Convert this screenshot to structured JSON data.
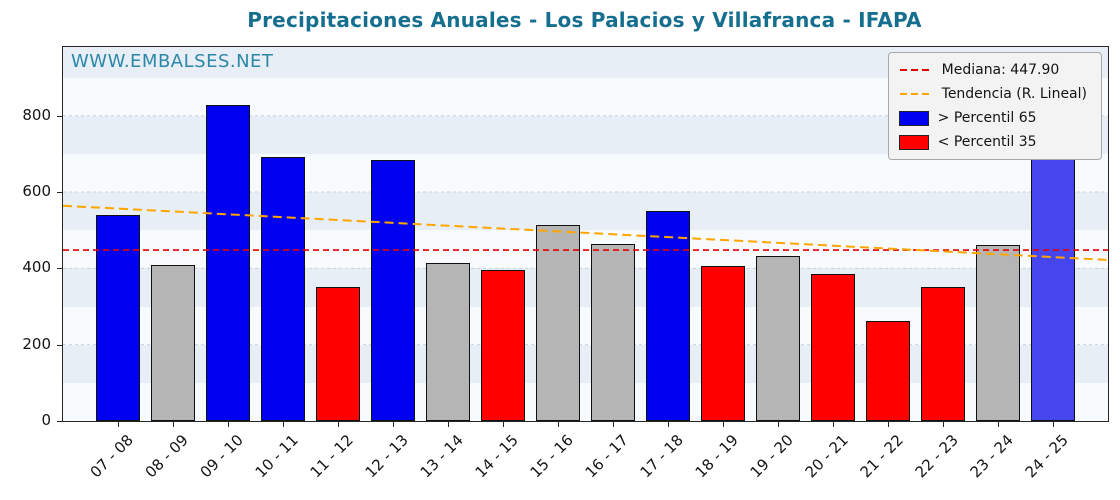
{
  "title": "Precipitaciones Anuales - Los Palacios y Villafranca - IFAPA",
  "watermark": "WWW.EMBALSES.NET",
  "colors": {
    "title": "#176f8f",
    "watermark": "#2d87a8",
    "band_light": "#e7eef6",
    "band_lighter": "#f8fbfd",
    "gridline": "#c4d2e0",
    "axis": "#262626",
    "bar_blue": "#0000f0",
    "bar_red": "#ff0000",
    "bar_gray": "#b5b5b5",
    "bar_blue_current": "#4646ee",
    "median_line": "#e60000",
    "trend_line": "#ffa500",
    "legend_background": "#f3f3f3"
  },
  "chart_data": {
    "type": "bar",
    "title": "Precipitaciones Anuales - Los Palacios y Villafranca - IFAPA",
    "xlabel": "",
    "ylabel": "",
    "categories": [
      "07 - 08",
      "08 - 09",
      "09 - 10",
      "10 - 11",
      "11 - 12",
      "12 - 13",
      "13 - 14",
      "14 - 15",
      "15 - 16",
      "16 - 17",
      "17 - 18",
      "18 - 19",
      "19 - 20",
      "20 - 21",
      "21 - 22",
      "22 - 23",
      "23 - 24",
      "24 - 25"
    ],
    "values": [
      540,
      410,
      828,
      693,
      350,
      683,
      413,
      397,
      513,
      465,
      551,
      405,
      432,
      386,
      263,
      352,
      461,
      766
    ],
    "bar_colors": [
      "#0000f0",
      "#b5b5b5",
      "#0000f0",
      "#0000f0",
      "#ff0000",
      "#0000f0",
      "#b5b5b5",
      "#ff0000",
      "#b5b5b5",
      "#b5b5b5",
      "#0000f0",
      "#ff0000",
      "#b5b5b5",
      "#ff0000",
      "#ff0000",
      "#ff0000",
      "#b5b5b5",
      "#4646ee"
    ],
    "ylim": [
      0,
      980
    ],
    "yticks": [
      0,
      200,
      400,
      600,
      800
    ],
    "grid": true,
    "median": {
      "value": 447.9,
      "color": "#e60000",
      "label": "Mediana: 447.90"
    },
    "trend": {
      "start": 564,
      "end": 422,
      "color": "#ffa500",
      "label": "Tendencia (R. Lineal)"
    },
    "legend_position": "upper right",
    "legend": [
      {
        "label": "Mediana: 447.90",
        "type": "line",
        "color": "#e60000"
      },
      {
        "label": "Tendencia (R. Lineal)",
        "type": "line",
        "color": "#ffa500"
      },
      {
        "label": "> Percentil 65",
        "type": "patch",
        "color": "#0000f0"
      },
      {
        "label": "< Percentil 35",
        "type": "patch",
        "color": "#ff0000"
      }
    ]
  }
}
